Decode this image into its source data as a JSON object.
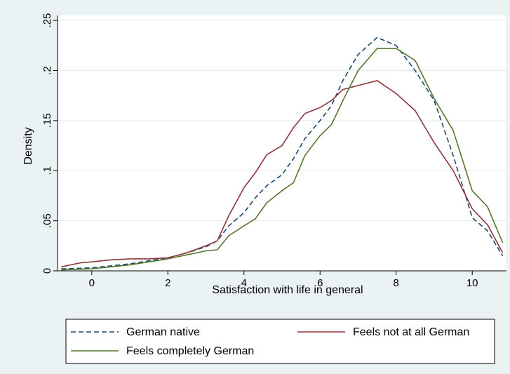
{
  "colors": {
    "background": "#eaf2f3",
    "plot_background": "#ffffff",
    "grid": "#e4ecee",
    "german_native": "#1a476f",
    "feels_not_at_all_german": "#90353b",
    "feels_completely_german": "#55752f"
  },
  "chart_data": {
    "type": "line",
    "title": "",
    "xlabel": "Satisfaction with life in general",
    "ylabel": "Density",
    "xlim": [
      -0.9,
      10.9
    ],
    "ylim": [
      0,
      0.255
    ],
    "xticks": [
      0,
      2,
      4,
      6,
      8,
      10
    ],
    "xtick_labels": [
      "0",
      "2",
      "4",
      "6",
      "8",
      "10"
    ],
    "yticks": [
      0,
      0.05,
      0.1,
      0.15,
      0.2,
      0.25
    ],
    "ytick_labels": [
      "0",
      ".05",
      ".1",
      ".15",
      ".2",
      ".25"
    ],
    "grid": true,
    "legend_position": "bottom",
    "series": [
      {
        "name": "German native",
        "style": "dashed",
        "color_key": "german_native",
        "x": [
          -0.8,
          0.0,
          0.5,
          1.0,
          1.5,
          2.0,
          2.5,
          3.0,
          3.3,
          3.6,
          4.0,
          4.3,
          4.6,
          5.0,
          5.3,
          5.6,
          6.0,
          6.3,
          6.6,
          7.0,
          7.5,
          8.0,
          8.5,
          9.0,
          9.5,
          10.0,
          10.4,
          10.8
        ],
        "y": [
          0.002,
          0.003,
          0.005,
          0.007,
          0.01,
          0.013,
          0.018,
          0.024,
          0.03,
          0.045,
          0.058,
          0.073,
          0.085,
          0.096,
          0.112,
          0.132,
          0.15,
          0.165,
          0.19,
          0.216,
          0.233,
          0.225,
          0.2,
          0.17,
          0.115,
          0.053,
          0.04,
          0.015
        ]
      },
      {
        "name": "Feels not at all German",
        "style": "solid",
        "color_key": "feels_not_at_all_german",
        "x": [
          -0.8,
          -0.3,
          0.0,
          0.5,
          1.0,
          1.5,
          2.0,
          2.5,
          3.0,
          3.3,
          3.6,
          4.0,
          4.3,
          4.6,
          5.0,
          5.3,
          5.6,
          6.0,
          6.3,
          6.6,
          7.0,
          7.5,
          8.0,
          8.5,
          9.0,
          9.5,
          10.0,
          10.4,
          10.8
        ],
        "y": [
          0.004,
          0.008,
          0.009,
          0.011,
          0.012,
          0.012,
          0.013,
          0.018,
          0.025,
          0.03,
          0.055,
          0.083,
          0.098,
          0.116,
          0.125,
          0.143,
          0.157,
          0.163,
          0.17,
          0.181,
          0.185,
          0.19,
          0.177,
          0.16,
          0.128,
          0.1,
          0.062,
          0.046,
          0.018
        ]
      },
      {
        "name": "Feels completely German",
        "style": "solid",
        "color_key": "feels_completely_german",
        "x": [
          -0.8,
          0.0,
          0.5,
          1.0,
          1.5,
          2.0,
          2.5,
          3.0,
          3.3,
          3.6,
          4.0,
          4.3,
          4.6,
          5.0,
          5.3,
          5.6,
          6.0,
          6.3,
          6.6,
          7.0,
          7.5,
          8.0,
          8.5,
          9.0,
          9.5,
          10.0,
          10.4,
          10.8
        ],
        "y": [
          0.001,
          0.002,
          0.004,
          0.006,
          0.009,
          0.012,
          0.016,
          0.02,
          0.021,
          0.035,
          0.045,
          0.052,
          0.068,
          0.08,
          0.088,
          0.115,
          0.135,
          0.146,
          0.17,
          0.2,
          0.222,
          0.222,
          0.21,
          0.172,
          0.14,
          0.08,
          0.064,
          0.028
        ]
      }
    ]
  }
}
